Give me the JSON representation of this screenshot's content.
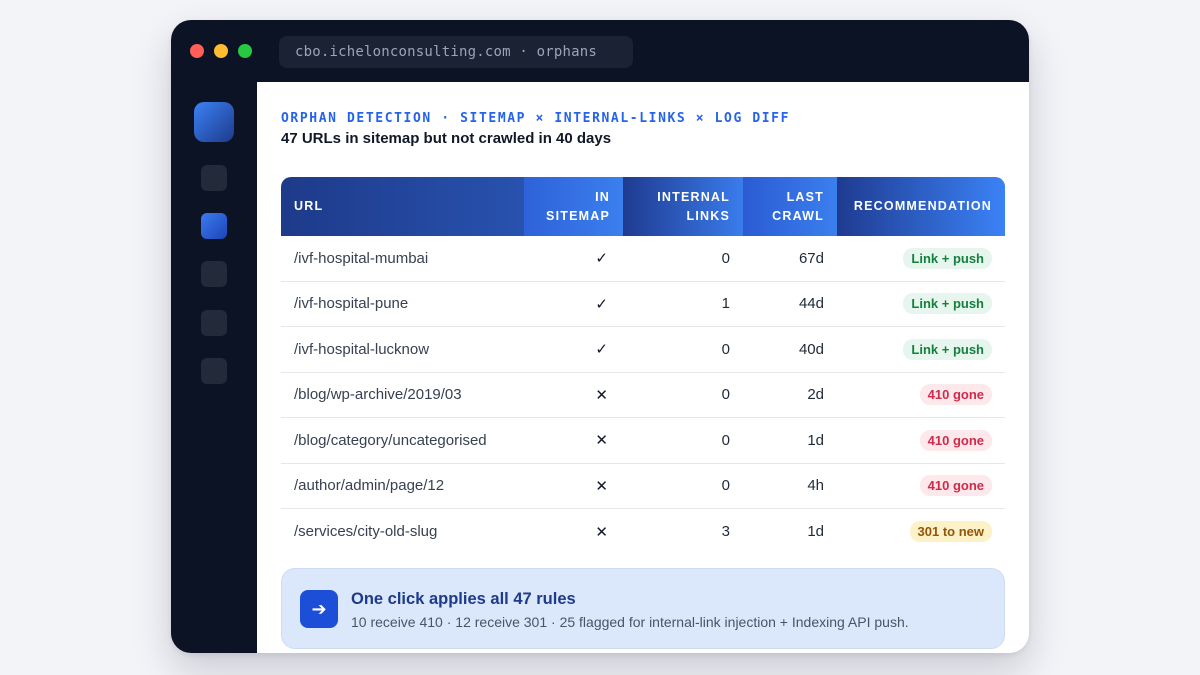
{
  "window": {
    "address": "cbo.ichelonconsulting.com · orphans"
  },
  "header": {
    "eyebrow": "ORPHAN DETECTION · SITEMAP × INTERNAL-LINKS × LOG DIFF",
    "subtitle": "47 URLs in sitemap but not crawled in 40 days"
  },
  "table": {
    "columns": {
      "url": "URL",
      "sitemap_line1": "IN",
      "sitemap_line2": "SITEMAP",
      "links_line1": "INTERNAL",
      "links_line2": "LINKS",
      "crawl_line1": "LAST",
      "crawl_line2": "CRAWL",
      "recommendation": "RECOMMENDATION"
    },
    "rows": [
      {
        "url": "/ivf-hospital-mumbai",
        "in_sitemap": "✓",
        "internal_links": "0",
        "last_crawl": "67d",
        "recommendation": "Link + push",
        "status": "green"
      },
      {
        "url": "/ivf-hospital-pune",
        "in_sitemap": "✓",
        "internal_links": "1",
        "last_crawl": "44d",
        "recommendation": "Link + push",
        "status": "green"
      },
      {
        "url": "/ivf-hospital-lucknow",
        "in_sitemap": "✓",
        "internal_links": "0",
        "last_crawl": "40d",
        "recommendation": "Link + push",
        "status": "green"
      },
      {
        "url": "/blog/wp-archive/2019/03",
        "in_sitemap": "✕",
        "internal_links": "0",
        "last_crawl": "2d",
        "recommendation": "410 gone",
        "status": "red"
      },
      {
        "url": "/blog/category/uncategorised",
        "in_sitemap": "✕",
        "internal_links": "0",
        "last_crawl": "1d",
        "recommendation": "410 gone",
        "status": "red"
      },
      {
        "url": "/author/admin/page/12",
        "in_sitemap": "✕",
        "internal_links": "0",
        "last_crawl": "4h",
        "recommendation": "410 gone",
        "status": "red"
      },
      {
        "url": "/services/city-old-slug",
        "in_sitemap": "✕",
        "internal_links": "3",
        "last_crawl": "1d",
        "recommendation": "301 to new",
        "status": "amber"
      }
    ]
  },
  "callout": {
    "icon": "arrow-right-icon",
    "title": "One click applies all 47 rules",
    "text": "10 receive 410 · 12 receive 301 · 25 flagged for internal-link injection + Indexing API push."
  },
  "colors": {
    "accent": "#2563eb",
    "header_gradient_start": "#1e3a8a",
    "header_gradient_end": "#3b82f6",
    "sidebar": "#0c1324",
    "green": "#15803d",
    "red": "#d12a4a",
    "amber": "#92560b"
  }
}
